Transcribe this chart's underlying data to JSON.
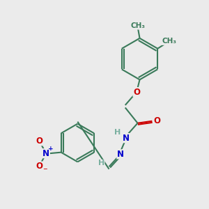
{
  "bg_color": "#ebebeb",
  "bond_color": "#3a7a5a",
  "bond_width": 1.5,
  "atom_colors": {
    "O": "#cc0000",
    "N": "#0000cc",
    "C": "#3a7a5a",
    "H": "#7ab0a0"
  },
  "font_size_atom": 8.5,
  "font_size_small": 7.5,
  "font_size_h": 8.0
}
